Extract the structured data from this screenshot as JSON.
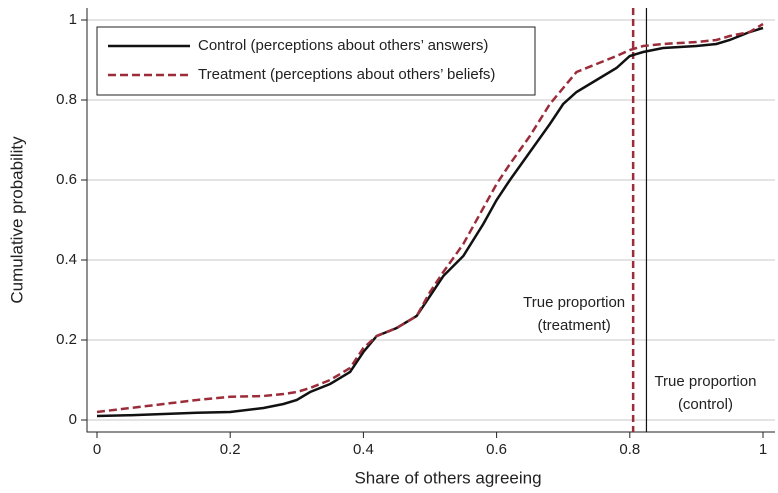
{
  "chart_data": {
    "type": "line",
    "xlabel": "Share of others agreeing",
    "ylabel": "Cumulative probability",
    "x": [
      0,
      0.05,
      0.1,
      0.15,
      0.2,
      0.25,
      0.28,
      0.3,
      0.32,
      0.35,
      0.38,
      0.4,
      0.42,
      0.45,
      0.48,
      0.5,
      0.52,
      0.55,
      0.58,
      0.6,
      0.62,
      0.65,
      0.68,
      0.7,
      0.72,
      0.75,
      0.78,
      0.8,
      0.82,
      0.85,
      0.9,
      0.93,
      0.95,
      0.98,
      1
    ],
    "series": [
      {
        "name": "Control (perceptions about others’ answers)",
        "color": "#111111",
        "dash": false,
        "values": [
          0.01,
          0.012,
          0.015,
          0.018,
          0.02,
          0.03,
          0.04,
          0.05,
          0.07,
          0.09,
          0.12,
          0.17,
          0.21,
          0.23,
          0.26,
          0.31,
          0.36,
          0.41,
          0.49,
          0.55,
          0.6,
          0.67,
          0.74,
          0.79,
          0.82,
          0.85,
          0.88,
          0.91,
          0.92,
          0.93,
          0.935,
          0.94,
          0.95,
          0.97,
          0.98
        ]
      },
      {
        "name": "Treatment (perceptions about others’ beliefs)",
        "color": "#9b2d3a",
        "dash": true,
        "values": [
          0.02,
          0.03,
          0.04,
          0.05,
          0.058,
          0.06,
          0.065,
          0.07,
          0.08,
          0.1,
          0.13,
          0.18,
          0.21,
          0.23,
          0.26,
          0.32,
          0.37,
          0.44,
          0.53,
          0.59,
          0.64,
          0.71,
          0.79,
          0.83,
          0.87,
          0.89,
          0.91,
          0.925,
          0.935,
          0.94,
          0.945,
          0.95,
          0.96,
          0.97,
          0.99
        ]
      }
    ],
    "annotations": [
      {
        "text": "True proportion",
        "detail": "(treatment)",
        "x": 0.805,
        "color": "#9b2d3a",
        "dash": true
      },
      {
        "text": "True proportion",
        "detail": "(control)",
        "x": 0.825,
        "color": "#111111",
        "dash": false
      }
    ],
    "xlim": [
      -0.015,
      1.018
    ],
    "ylim": [
      -0.03,
      1.03
    ],
    "xticks": [
      0,
      0.2,
      0.4,
      0.6,
      0.8,
      1
    ],
    "yticks": [
      0,
      0.2,
      0.4,
      0.6,
      0.8,
      1
    ],
    "grid": true
  }
}
